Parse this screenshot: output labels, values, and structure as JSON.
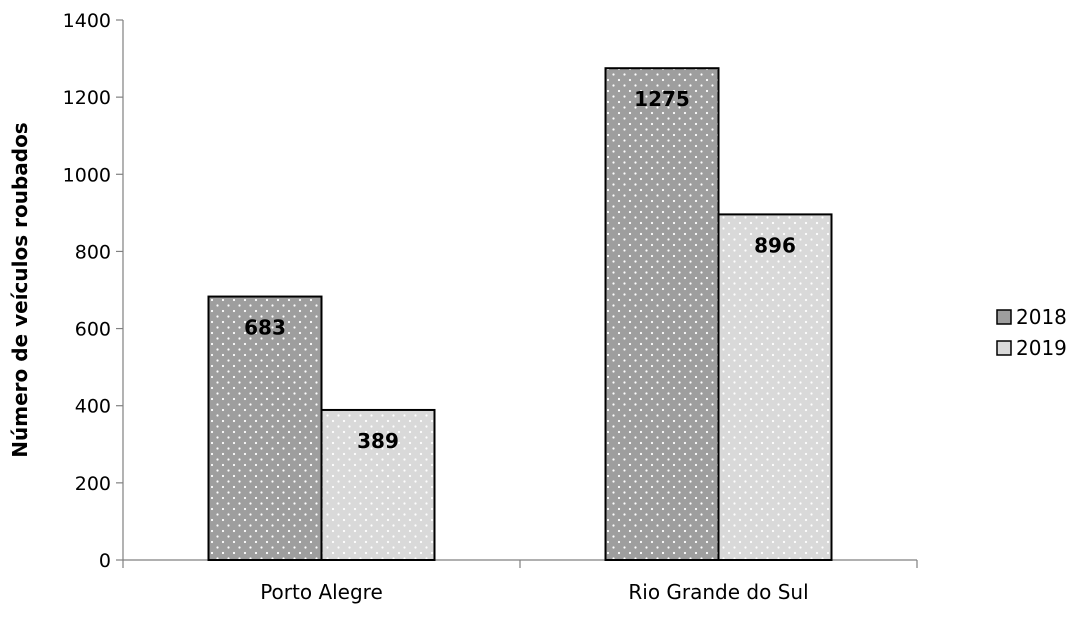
{
  "chart_data": {
    "type": "bar",
    "title": "",
    "xlabel": "",
    "ylabel": "Número de veículos roubados",
    "categories": [
      "Porto Alegre",
      "Rio Grande do Sul"
    ],
    "series": [
      {
        "name": "2018",
        "values": [
          683,
          1275
        ],
        "color": "#9e9e9e"
      },
      {
        "name": "2019",
        "values": [
          389,
          896
        ],
        "color": "#d9d9d9"
      }
    ],
    "ylim": [
      0,
      1400
    ],
    "yticks": [
      0,
      200,
      400,
      600,
      800,
      1000,
      1200,
      1400
    ],
    "data_labels": true,
    "grid": false,
    "legend_position": "right",
    "pattern": "dotted"
  }
}
